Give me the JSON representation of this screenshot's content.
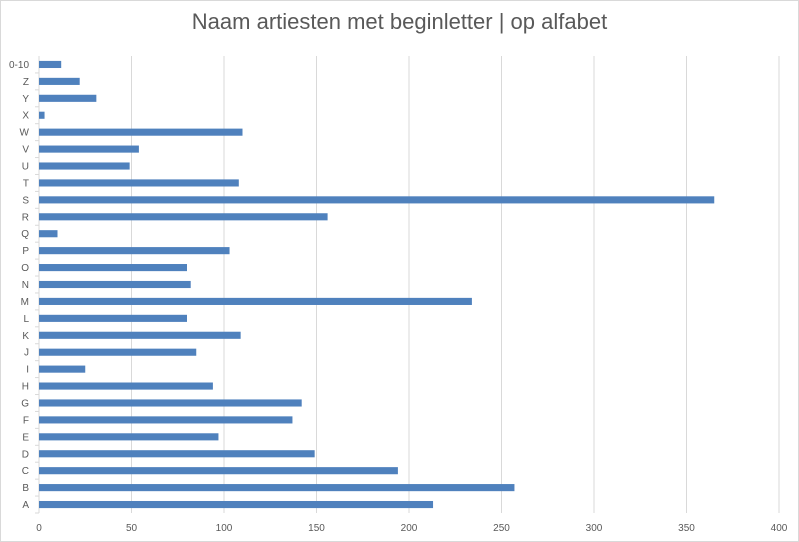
{
  "chart_data": {
    "type": "bar",
    "orientation": "horizontal",
    "title": "Naam artiesten met beginletter | op alfabet",
    "categories": [
      "A",
      "B",
      "C",
      "D",
      "E",
      "F",
      "G",
      "H",
      "I",
      "J",
      "K",
      "L",
      "M",
      "N",
      "O",
      "P",
      "Q",
      "R",
      "S",
      "T",
      "U",
      "V",
      "W",
      "X",
      "Y",
      "Z",
      "0-10"
    ],
    "values": [
      213,
      257,
      194,
      149,
      97,
      137,
      142,
      94,
      25,
      85,
      109,
      80,
      234,
      82,
      80,
      103,
      10,
      156,
      365,
      108,
      49,
      54,
      110,
      3,
      31,
      22,
      12
    ],
    "xlim": [
      0,
      400
    ],
    "x_ticks": [
      0,
      50,
      100,
      150,
      200,
      250,
      300,
      350,
      400
    ],
    "xlabel": "",
    "ylabel": "",
    "grid": "vertical",
    "legend": "none",
    "bar_color": "#4f81bd",
    "grid_color": "#d9d9d9"
  }
}
